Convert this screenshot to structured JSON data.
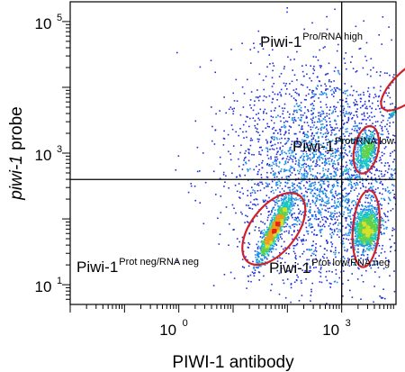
{
  "chart_data": {
    "type": "scatter",
    "subtype": "flow-cytometry density dot plot",
    "xlabel": "PIWI-1 antibody",
    "ylabel_italic": "piwi-1",
    "ylabel_rest": " probe",
    "x_scale": "log10",
    "y_scale": "log10",
    "xlim_log10": [
      -2,
      4
    ],
    "ylim_log10": [
      0.7,
      5.3
    ],
    "x_ticks": [
      {
        "base": "10",
        "exp": "0",
        "log10": 0
      },
      {
        "base": "10",
        "exp": "3",
        "log10": 3
      }
    ],
    "y_ticks": [
      {
        "base": "10",
        "exp": "1",
        "log10": 1
      },
      {
        "base": "10",
        "exp": "3",
        "log10": 3
      },
      {
        "base": "10",
        "exp": "5",
        "log10": 5
      }
    ],
    "quadrant_lines": {
      "x_log10": 3.0,
      "y_log10": 2.6
    },
    "grid": false,
    "populations": [
      {
        "base": "Piwi-1",
        "sup": "Pro/RNA high",
        "center_log10": [
          4.25,
          4.05
        ],
        "sd_log10": [
          0.22,
          0.26
        ],
        "angle_deg": -42,
        "count": 1800,
        "gate_semi_axes_log10": [
          0.6,
          0.24
        ]
      },
      {
        "base": "Piwi-1",
        "sup": "Prot/RNA low",
        "center_log10": [
          3.45,
          3.05
        ],
        "sd_log10": [
          0.14,
          0.2
        ],
        "angle_deg": -78,
        "count": 450,
        "gate_semi_axes_log10": [
          0.4,
          0.2
        ]
      },
      {
        "base": "Piwi-1",
        "sup": "Prot neg/RNA neg",
        "center_log10": [
          1.75,
          1.85
        ],
        "sd_log10": [
          0.26,
          0.26
        ],
        "angle_deg": -52,
        "count": 1500,
        "gate_semi_axes_log10": [
          0.7,
          0.38
        ]
      },
      {
        "base": "Piwi-1",
        "sup": "Prot low/RNA neg",
        "center_log10": [
          3.45,
          1.85
        ],
        "sd_log10": [
          0.14,
          0.24
        ],
        "angle_deg": -85,
        "count": 1000,
        "gate_semi_axes_log10": [
          0.64,
          0.22
        ]
      }
    ],
    "scatter_cloud_count": 3000
  }
}
